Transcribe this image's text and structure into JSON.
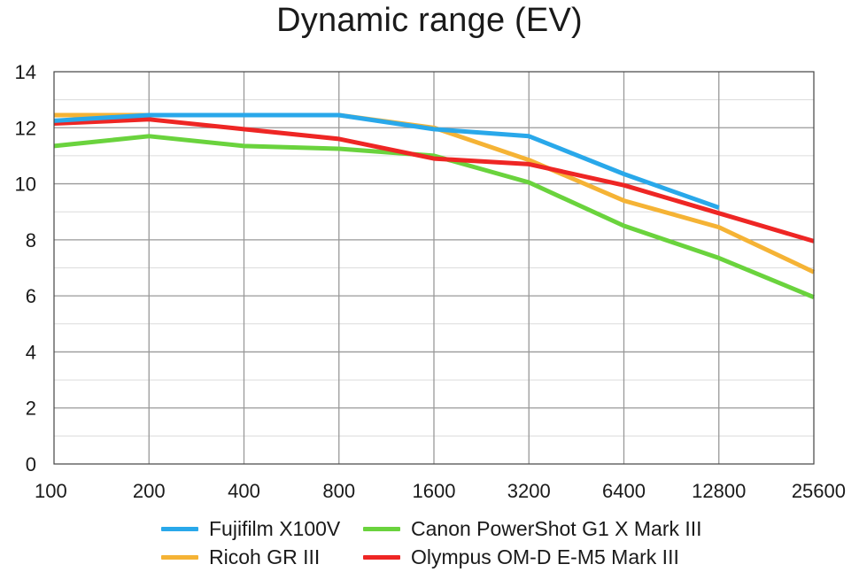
{
  "chart_data": {
    "type": "line",
    "title": "Dynamic range (EV)",
    "xlabel": "",
    "ylabel": "",
    "categories": [
      "100",
      "200",
      "400",
      "800",
      "1600",
      "3200",
      "6400",
      "12800",
      "25600"
    ],
    "ylim": [
      0,
      14
    ],
    "yticks": [
      0,
      2,
      4,
      6,
      8,
      10,
      12,
      14
    ],
    "grid": true,
    "legend_position": "bottom",
    "series": [
      {
        "name": "Ricoh GR III",
        "color": "#f5b335",
        "values": [
          12.45,
          12.45,
          12.45,
          12.45,
          12.0,
          10.85,
          9.4,
          8.45,
          6.85
        ]
      },
      {
        "name": "Canon PowerShot G1 X Mark III",
        "color": "#6ad33d",
        "values": [
          11.35,
          11.7,
          11.35,
          11.25,
          11.0,
          10.05,
          8.5,
          7.35,
          5.95
        ]
      },
      {
        "name": "Olympus OM-D E-M5 Mark III",
        "color": "#ee2624",
        "values": [
          12.15,
          12.3,
          11.95,
          11.6,
          10.9,
          10.7,
          9.95,
          8.95,
          7.95
        ]
      },
      {
        "name": "Fujifilm X100V",
        "color": "#29a8ea",
        "values": [
          12.25,
          12.45,
          12.45,
          12.45,
          11.95,
          11.7,
          10.35,
          9.15,
          null
        ]
      }
    ]
  }
}
